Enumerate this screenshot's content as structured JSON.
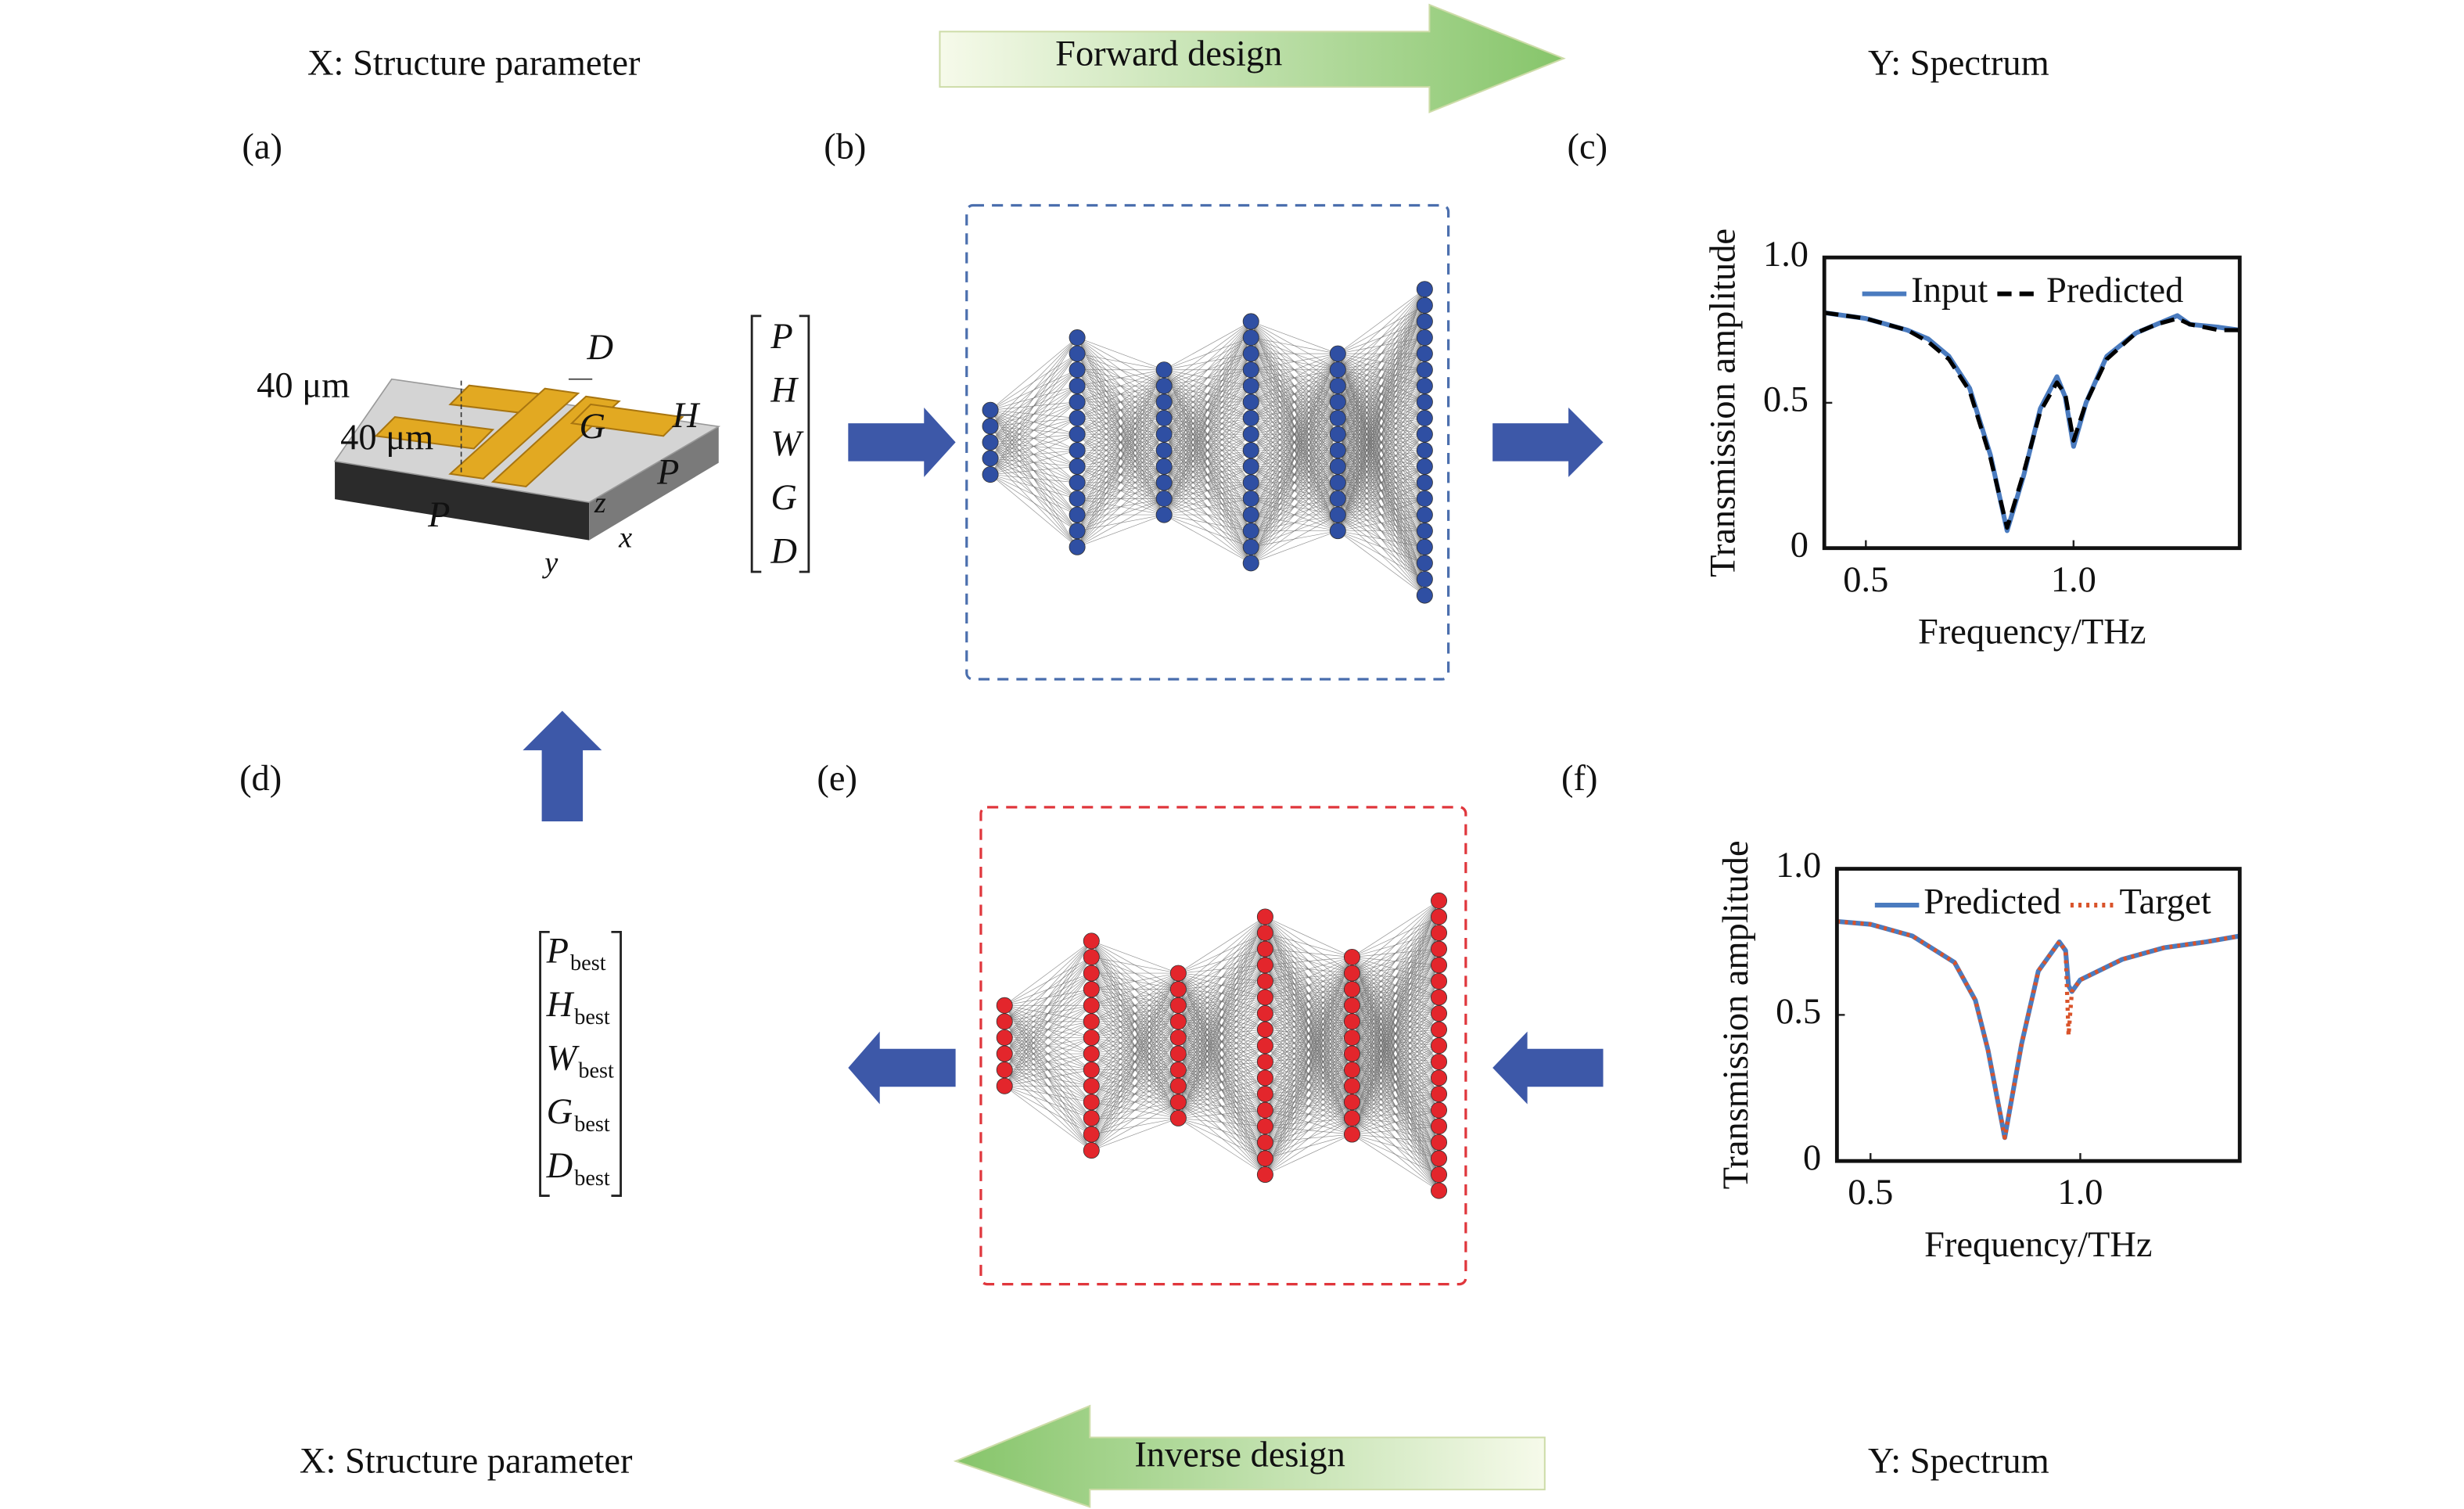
{
  "header": {
    "left_label": "X: Structure parameter",
    "arrow_label": "Forward design",
    "right_label": "Y: Spectrum"
  },
  "footer": {
    "left_label": "X: Structure parameter",
    "arrow_label": "Inverse design",
    "right_label": "Y: Spectrum"
  },
  "panels": {
    "a": "(a)",
    "b": "(b)",
    "c": "(c)",
    "d": "(d)",
    "e": "(e)",
    "f": "(f)"
  },
  "structure": {
    "width_label": "40 μm",
    "length_label": "40 μm",
    "d_label": "D",
    "g_label": "G",
    "h_label": "H",
    "p_label_right": "P",
    "p_label_front": "P",
    "z_label": "z",
    "x_label": "x",
    "y_label": "y"
  },
  "forward_input": [
    "P",
    "H",
    "W",
    "G",
    "D"
  ],
  "inverse_output": [
    {
      "symbol": "P",
      "subscript": "best"
    },
    {
      "symbol": "H",
      "subscript": "best"
    },
    {
      "symbol": "W",
      "subscript": "best"
    },
    {
      "symbol": "G",
      "subscript": "best"
    },
    {
      "symbol": "D",
      "subscript": "best"
    }
  ],
  "networks": {
    "forward": {
      "layer_sizes": [
        5,
        14,
        10,
        16,
        12,
        20
      ],
      "color": "#2f4fa3",
      "box_color": "#4b6fae"
    },
    "inverse": {
      "layer_sizes": [
        6,
        14,
        10,
        17,
        12,
        19
      ],
      "color": "#e3262c",
      "box_color": "#e0363c"
    }
  },
  "chart_data": [
    {
      "type": "line",
      "x_label": "Frequency/THz",
      "y_label": "Transmission amplitude",
      "x": [
        0.4,
        0.45,
        0.5,
        0.55,
        0.6,
        0.65,
        0.7,
        0.75,
        0.8,
        0.84,
        0.88,
        0.92,
        0.96,
        0.98,
        1.0,
        1.03,
        1.08,
        1.15,
        1.2,
        1.25,
        1.28,
        1.35,
        1.4
      ],
      "series": [
        {
          "name": "Input",
          "color": "#4a7bbf",
          "dash": "solid",
          "values": [
            0.81,
            0.8,
            0.79,
            0.77,
            0.75,
            0.72,
            0.66,
            0.55,
            0.32,
            0.06,
            0.25,
            0.48,
            0.59,
            0.52,
            0.35,
            0.5,
            0.66,
            0.74,
            0.77,
            0.8,
            0.77,
            0.76,
            0.75
          ]
        },
        {
          "name": "Predicted",
          "color": "#000000",
          "dash": "dashed",
          "values": [
            0.81,
            0.8,
            0.79,
            0.77,
            0.75,
            0.71,
            0.65,
            0.54,
            0.31,
            0.07,
            0.26,
            0.47,
            0.57,
            0.53,
            0.37,
            0.5,
            0.65,
            0.74,
            0.77,
            0.79,
            0.77,
            0.75,
            0.75
          ]
        }
      ],
      "xlim": [
        0.4,
        1.4
      ],
      "ylim": [
        0,
        1
      ],
      "xticks": [
        0.5,
        {
          "value": 1,
          "label": "1.0"
        }
      ],
      "yticks": [
        0,
        0.5,
        {
          "value": 1,
          "label": "1.0"
        }
      ],
      "legend": "top"
    },
    {
      "type": "line",
      "x_label": "Frequency/THz",
      "y_label": "Transmission amplitude",
      "x": [
        0.42,
        0.5,
        0.6,
        0.7,
        0.75,
        0.78,
        0.82,
        0.86,
        0.9,
        0.95,
        0.965,
        0.972,
        0.98,
        1.0,
        1.1,
        1.2,
        1.3,
        1.38
      ],
      "series": [
        {
          "name": "Predicted",
          "color": "#4a7bbf",
          "dash": "solid",
          "values": [
            0.82,
            0.81,
            0.77,
            0.68,
            0.55,
            0.38,
            0.08,
            0.4,
            0.65,
            0.75,
            0.72,
            0.6,
            0.58,
            0.62,
            0.69,
            0.73,
            0.75,
            0.77
          ]
        },
        {
          "name": "Target",
          "color": "#d9532a",
          "dash": "dotted",
          "values": [
            0.82,
            0.81,
            0.77,
            0.68,
            0.55,
            0.38,
            0.08,
            0.4,
            0.65,
            0.75,
            0.72,
            0.43,
            0.58,
            0.62,
            0.69,
            0.73,
            0.75,
            0.77
          ]
        }
      ],
      "xlim": [
        0.42,
        1.38
      ],
      "ylim": [
        0,
        1
      ],
      "xticks": [
        0.5,
        {
          "value": 1,
          "label": "1.0"
        }
      ],
      "yticks": [
        0,
        0.5,
        {
          "value": 1,
          "label": "1.0"
        }
      ],
      "legend": "top"
    }
  ]
}
